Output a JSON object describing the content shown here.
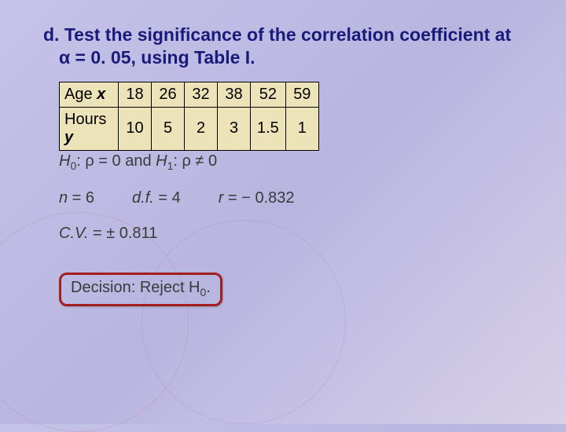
{
  "heading": "d. Test the significance of the correlation coefficient at α = 0. 05, using Table I.",
  "table": {
    "row1_label": "Age",
    "row1_var": "x",
    "row2_label": "Hours",
    "row2_var": "y",
    "row1": [
      "18",
      "26",
      "32",
      "38",
      "52",
      "59"
    ],
    "row2": [
      "10",
      "5",
      "2",
      "3",
      "1.5",
      "1"
    ],
    "cell_bg": "#ede3b8",
    "border_color": "#000000"
  },
  "hypothesis": {
    "h0_label": "H",
    "h0_sub": "0",
    "h0_text": ": ρ = 0 and",
    "h1_label": "H",
    "h1_sub": "1",
    "h1_text": ": ρ ≠ 0"
  },
  "stats": {
    "n_label": "n",
    "n_eq": " = 6",
    "df_label": "d.f.",
    "df_eq": " = 4",
    "r_label": "r",
    "r_eq": " = − 0.832"
  },
  "cv": {
    "label": "C.V.",
    "eq": " = ± 0.811"
  },
  "decision": {
    "label": "Decision: Reject H",
    "sub": "0",
    "tail": ".",
    "border_color": "#a02020"
  },
  "colors": {
    "bg_grad_start": "#c5c3e8",
    "bg_grad_end": "#d8d0e8",
    "heading_color": "#1a1a7a",
    "body_text": "#3a3a3a"
  }
}
